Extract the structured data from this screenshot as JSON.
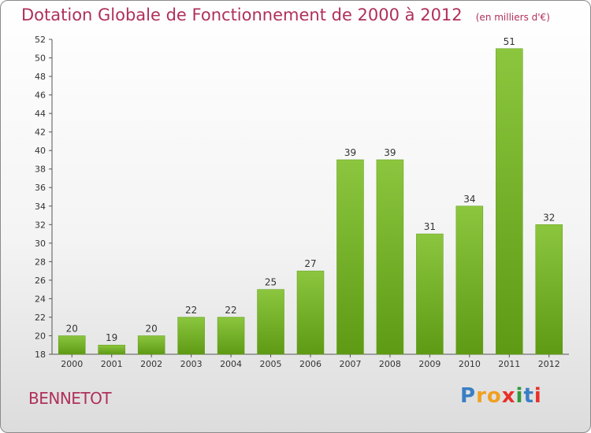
{
  "chart_data": {
    "type": "bar",
    "title": "Dotation Globale de Fonctionnement de 2000 à 2012",
    "unit": "(en milliers d'€)",
    "categories": [
      "2000",
      "2001",
      "2002",
      "2003",
      "2004",
      "2005",
      "2006",
      "2007",
      "2008",
      "2009",
      "2010",
      "2011",
      "2012"
    ],
    "values": [
      20,
      19,
      20,
      22,
      22,
      25,
      27,
      39,
      39,
      31,
      34,
      51,
      32
    ],
    "ylim": [
      18,
      52
    ],
    "yticks": [
      18,
      20,
      22,
      24,
      26,
      28,
      30,
      32,
      34,
      36,
      38,
      40,
      42,
      44,
      46,
      48,
      50,
      52
    ],
    "grid": false,
    "bar_color": "#8cc63f",
    "bar_color_dark": "#5e9a14",
    "text_color": "#b0305a"
  },
  "commune": "BENNETOT",
  "logo": {
    "letters": [
      "P",
      "r",
      "o",
      "x",
      "i",
      "t",
      "i"
    ],
    "colors": [
      "#3a7fc4",
      "#f0a020",
      "#f0a020",
      "#e8302a",
      "#2f9a3a",
      "#3a7fc4",
      "#e8302a"
    ]
  }
}
